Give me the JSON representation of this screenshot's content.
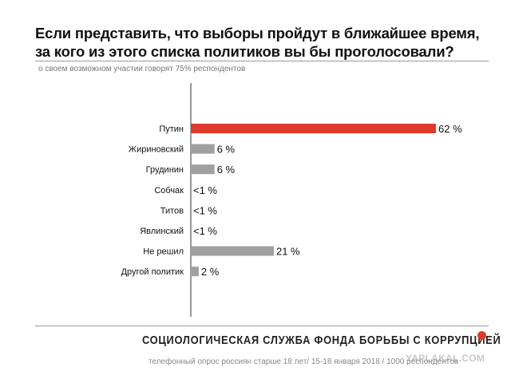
{
  "chart_data": {
    "type": "bar",
    "orientation": "horizontal",
    "title": "Если представить, что выборы пройдут в ближайшее время, за кого из этого списка политиков вы бы проголосовали?",
    "title_lines": [
      "Если представить, что выборы пройдут в ближайшее время,",
      "за кого из этого списка политиков вы бы проголосовали?"
    ],
    "subtitle": "о своем возможном участии говорят 75% респондентов",
    "categories": [
      "Путин",
      "Жириновский",
      "Грудинин",
      "Собчак",
      "Титов",
      "Явлинский",
      "Не решил",
      "Другой политик"
    ],
    "values": [
      62,
      6,
      6,
      0,
      0,
      0,
      21,
      2
    ],
    "value_labels": [
      "62 %",
      "6 %",
      "6 %",
      "<1 %",
      "<1 %",
      "<1 %",
      "21 %",
      "2 %"
    ],
    "highlight_index": 0,
    "colors": {
      "highlight": "#e03a2d",
      "default": "#a0a0a0",
      "axis": "#333333"
    },
    "xlim": [
      0,
      62
    ],
    "grid": false,
    "legend": "none"
  },
  "footer": {
    "organization": "СОЦИОЛОГИЧЕСКАЯ СЛУЖБА ФОНДА БОРЬБЫ С КОРРУПЦИЕЙ",
    "note": "телефонный опрос россиян старше 18 лет/ 15-18 января 2018 / 1000 респондентов",
    "watermark": "YAPLAKAL.COM",
    "dot_color": "#e03a2d"
  }
}
